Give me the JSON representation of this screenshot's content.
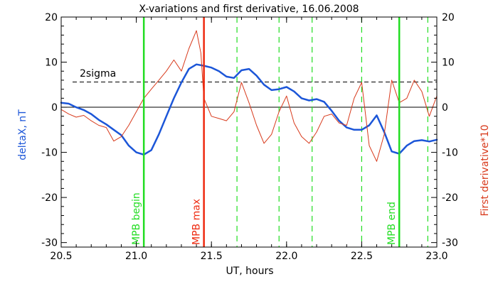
{
  "chart_data": {
    "type": "line",
    "title": "X-variations and first derivative, 16.06.2008",
    "xlabel": "UT, hours",
    "ylabel_left": "deltaX, nT",
    "ylabel_right": "First derivative*10",
    "xlim": [
      20.5,
      23.0
    ],
    "ylim": [
      -31,
      20
    ],
    "x_ticks": [
      {
        "value": 20.5,
        "label": "20.5"
      },
      {
        "value": 21.0,
        "label": "21.0"
      },
      {
        "value": 21.5,
        "label": "21.5"
      },
      {
        "value": 22.0,
        "label": "22.0"
      },
      {
        "value": 22.5,
        "label": "22.5"
      },
      {
        "value": 23.0,
        "label": "23.0"
      }
    ],
    "y_ticks": [
      {
        "value": 20,
        "label": "20"
      },
      {
        "value": 10,
        "label": "10"
      },
      {
        "value": 0,
        "label": "0"
      },
      {
        "value": -10,
        "label": "-10"
      },
      {
        "value": -20,
        "label": "-20"
      },
      {
        "value": -30,
        "label": "-30"
      }
    ],
    "colors": {
      "deltaX": "#1c56d8",
      "derivative": "#d83a1c",
      "mpb_boundary": "#22dd22",
      "mpb_max": "#ee2a10",
      "dashed_marker": "#22dd22",
      "axis": "#000000"
    },
    "threshold": {
      "label": "2sigma",
      "value": 5.6
    },
    "vertical_markers": [
      {
        "x": 21.05,
        "label": "MPB begin",
        "style": "solid",
        "color": "#22dd22"
      },
      {
        "x": 21.45,
        "label": "MPB max",
        "style": "solid",
        "color": "#ee2a10"
      },
      {
        "x": 22.75,
        "label": "MPB end",
        "style": "solid",
        "color": "#22dd22"
      }
    ],
    "dashed_markers": [
      21.67,
      21.95,
      22.17,
      22.5,
      22.94
    ],
    "series": [
      {
        "key": "deltaX",
        "color": "#1c56d8",
        "width": 2.5,
        "x": [
          20.5,
          20.55,
          20.6,
          20.65,
          20.7,
          20.75,
          20.8,
          20.85,
          20.9,
          20.95,
          21.0,
          21.05,
          21.1,
          21.15,
          21.2,
          21.25,
          21.3,
          21.35,
          21.4,
          21.45,
          21.5,
          21.55,
          21.6,
          21.65,
          21.7,
          21.75,
          21.8,
          21.85,
          21.9,
          21.95,
          22.0,
          22.05,
          22.1,
          22.15,
          22.2,
          22.25,
          22.3,
          22.35,
          22.4,
          22.45,
          22.5,
          22.55,
          22.6,
          22.65,
          22.7,
          22.75,
          22.8,
          22.85,
          22.9,
          22.95,
          23.0
        ],
        "y": [
          1.0,
          0.8,
          0.0,
          -0.6,
          -1.5,
          -2.8,
          -3.8,
          -5.0,
          -6.2,
          -8.5,
          -10.0,
          -10.5,
          -9.5,
          -6.0,
          -2.0,
          2.0,
          5.5,
          8.5,
          9.5,
          9.2,
          8.8,
          8.0,
          6.8,
          6.5,
          8.2,
          8.5,
          7.0,
          5.0,
          3.8,
          4.0,
          4.5,
          3.5,
          2.0,
          1.5,
          1.8,
          1.2,
          -0.8,
          -3.0,
          -4.5,
          -5.0,
          -5.0,
          -4.0,
          -1.8,
          -5.5,
          -9.8,
          -10.3,
          -8.5,
          -7.5,
          -7.3,
          -7.6,
          -7.2
        ]
      },
      {
        "key": "derivative",
        "color": "#d83a1c",
        "width": 1,
        "x": [
          20.5,
          20.55,
          20.6,
          20.65,
          20.7,
          20.75,
          20.8,
          20.85,
          20.9,
          20.95,
          21.0,
          21.05,
          21.1,
          21.15,
          21.2,
          21.25,
          21.3,
          21.35,
          21.4,
          21.43,
          21.45,
          21.5,
          21.55,
          21.6,
          21.65,
          21.7,
          21.75,
          21.8,
          21.85,
          21.9,
          21.95,
          22.0,
          22.05,
          22.1,
          22.15,
          22.2,
          22.25,
          22.3,
          22.35,
          22.4,
          22.45,
          22.5,
          22.55,
          22.6,
          22.65,
          22.7,
          22.75,
          22.8,
          22.85,
          22.9,
          22.95,
          23.0
        ],
        "y": [
          -0.5,
          -1.5,
          -2.2,
          -1.8,
          -3.0,
          -4.0,
          -4.5,
          -7.5,
          -6.5,
          -4.0,
          -1.0,
          2.0,
          4.0,
          6.0,
          8.0,
          10.5,
          8.0,
          13.0,
          17.0,
          12.0,
          2.0,
          -2.0,
          -2.5,
          -3.0,
          -1.0,
          5.5,
          1.0,
          -4.0,
          -8.0,
          -6.0,
          -1.0,
          2.5,
          -3.5,
          -6.5,
          -8.0,
          -5.5,
          -2.0,
          -1.5,
          -3.5,
          -4.0,
          2.0,
          5.5,
          -8.5,
          -12.0,
          -6.0,
          6.0,
          1.0,
          2.0,
          6.0,
          3.5,
          -2.0,
          2.5
        ]
      }
    ]
  }
}
